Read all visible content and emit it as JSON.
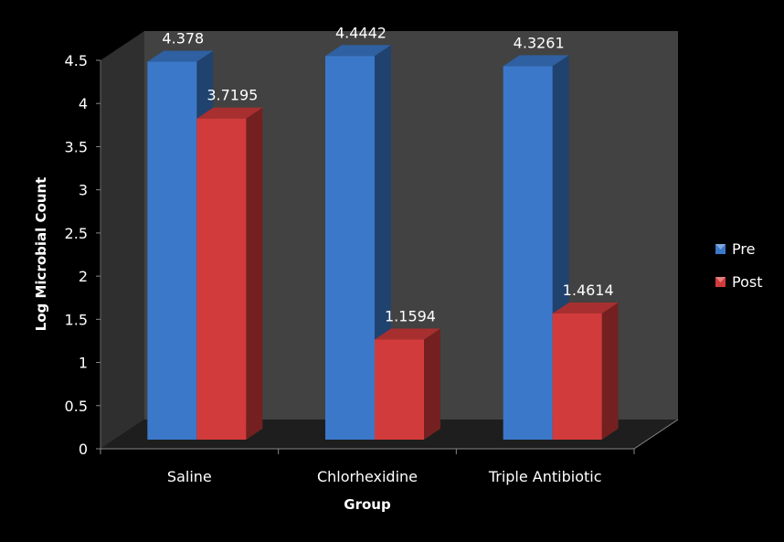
{
  "chart_data": {
    "type": "bar",
    "title": "",
    "xlabel": "Group",
    "ylabel": "Log Microbial Count",
    "categories": [
      "Saline",
      "Chlorhexidine",
      "Triple Antibiotic"
    ],
    "ylim": [
      0,
      4.5
    ],
    "yticks": [
      "0",
      "0.5",
      "1",
      "1.5",
      "2",
      "2.5",
      "3",
      "3.5",
      "4",
      "4.5"
    ],
    "grid": false,
    "legend_position": "right",
    "series": [
      {
        "name": "Pre",
        "values": [
          4.378,
          4.4442,
          4.3261
        ],
        "labels": [
          "4.378",
          "4.4442",
          "4.3261"
        ],
        "color": "#3b78c9"
      },
      {
        "name": "Post",
        "values": [
          3.7195,
          1.1594,
          1.4614
        ],
        "labels": [
          "3.7195",
          "1.1594",
          "1.4614"
        ],
        "color": "#d23b3b"
      }
    ],
    "style": "3d-column",
    "background": "#000000",
    "plot_wall_color": "#424242"
  }
}
